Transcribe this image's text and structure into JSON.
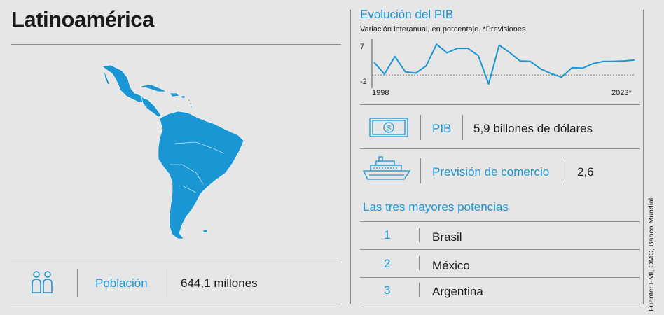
{
  "header": {
    "title": "Latinoamérica"
  },
  "population": {
    "label": "Población",
    "value": "644,1 millones"
  },
  "gdp_chart": {
    "title": "Evolución del PIB",
    "subtitle": "Variación interanual, en porcentaje. *Previsiones",
    "y_top_tick": "7",
    "y_bottom_tick": "-2",
    "x_start_label": "1998",
    "x_end_label": "2023*",
    "chart_data": {
      "type": "line",
      "x": [
        1998,
        1999,
        2000,
        2001,
        2002,
        2003,
        2004,
        2005,
        2006,
        2007,
        2008,
        2009,
        2010,
        2011,
        2012,
        2013,
        2014,
        2015,
        2016,
        2017,
        2018,
        2019,
        2020,
        2021,
        2022,
        2023
      ],
      "values": [
        2.8,
        0.2,
        4.1,
        0.7,
        0.4,
        2.0,
        6.8,
        4.9,
        5.9,
        5.9,
        4.3,
        -2.0,
        6.6,
        5.0,
        3.1,
        3.0,
        1.3,
        0.3,
        -0.5,
        1.6,
        1.5,
        2.5,
        3.0,
        3.0,
        3.1,
        3.3
      ],
      "ylim": [
        -2,
        7
      ],
      "line_color": "#1a96d4"
    }
  },
  "pib": {
    "label": "PIB",
    "value": "5,9 billones de dólares",
    "icon": "money-bill-icon"
  },
  "trade": {
    "label": "Previsión de comercio",
    "value": "2,6",
    "icon": "ship-icon"
  },
  "powers": {
    "title": "Las tres mayores potencias",
    "items": [
      {
        "rank": "1",
        "name": "Brasil"
      },
      {
        "rank": "2",
        "name": "México"
      },
      {
        "rank": "3",
        "name": "Argentina"
      }
    ]
  },
  "source": "Fuente: FMI, OMC, Banco Mundial",
  "colors": {
    "accent": "#1a96d4",
    "background": "#e6e6e6",
    "map": "#1a96d4"
  }
}
